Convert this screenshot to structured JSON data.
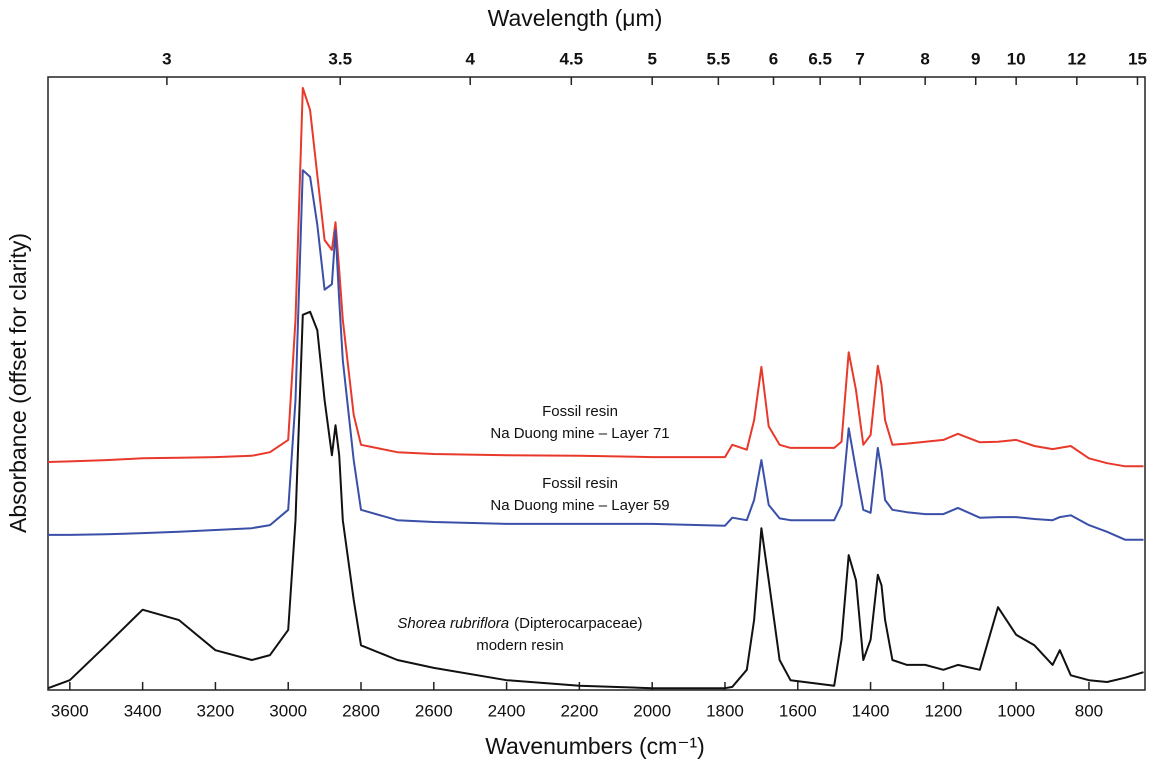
{
  "chart_data": {
    "type": "line",
    "title_top": "Wavelength (μm)",
    "xlabel": "Wavenumbers (cm⁻¹)",
    "ylabel": "Absorbance (offset for clarity)",
    "xlim": [
      3660,
      646
    ],
    "xticks": [
      3600,
      3400,
      3200,
      3000,
      2800,
      2600,
      2400,
      2200,
      2000,
      1800,
      1600,
      1400,
      1200,
      1000,
      800
    ],
    "x2ticks": [
      3,
      3.5,
      4,
      4.5,
      5,
      5.5,
      6,
      6.5,
      7,
      8,
      9,
      10,
      12,
      15
    ],
    "ylim": [
      0,
      100
    ],
    "x": [
      3660,
      3600,
      3500,
      3400,
      3300,
      3200,
      3100,
      3050,
      3000,
      2980,
      2960,
      2940,
      2920,
      2900,
      2880,
      2870,
      2860,
      2850,
      2820,
      2800,
      2700,
      2600,
      2400,
      2200,
      2000,
      1800,
      1780,
      1740,
      1720,
      1700,
      1680,
      1650,
      1620,
      1500,
      1480,
      1460,
      1440,
      1420,
      1400,
      1380,
      1370,
      1360,
      1340,
      1300,
      1250,
      1200,
      1160,
      1100,
      1050,
      1000,
      950,
      900,
      880,
      850,
      800,
      750,
      700,
      650
    ],
    "series": [
      {
        "color": "#e8392b",
        "values": [
          37.2,
          37.3,
          37.5,
          37.8,
          37.9,
          38,
          38.2,
          38.8,
          40.8,
          60.4,
          98.2,
          94.6,
          84,
          73.4,
          71.8,
          76.3,
          68.5,
          60.4,
          44.9,
          40,
          38.8,
          38.5,
          38.3,
          38.2,
          38,
          38,
          40,
          39.2,
          44,
          52.7,
          43,
          40,
          39.5,
          39.5,
          40.5,
          55.1,
          48.9,
          40,
          41.6,
          52.9,
          49.8,
          44,
          40,
          40.2,
          40.5,
          40.8,
          41.8,
          40.4,
          40.5,
          40.8,
          39.8,
          39.3,
          39.5,
          39.8,
          37.8,
          37,
          36.5,
          36.5
        ]
      },
      {
        "color": "#3a4fa8",
        "values": [
          25.3,
          25.3,
          25.4,
          25.6,
          25.8,
          26.1,
          26.4,
          26.9,
          29.4,
          47.3,
          84.8,
          83.7,
          75.9,
          65.3,
          66.2,
          75,
          63.6,
          53.8,
          37.5,
          29.4,
          27.7,
          27.4,
          27.1,
          27.1,
          27.1,
          26.8,
          28.1,
          27.7,
          31,
          37.5,
          30.2,
          28,
          27.7,
          27.7,
          30.2,
          42.7,
          35.9,
          29.4,
          28.9,
          39.5,
          35.9,
          31,
          29.4,
          29,
          28.7,
          28.7,
          29.7,
          28.1,
          28.2,
          28.2,
          27.9,
          27.7,
          28.2,
          28.5,
          26.9,
          25.8,
          24.5,
          24.5
        ]
      },
      {
        "color": "#111111",
        "values": [
          0.3,
          1.6,
          7.3,
          13.1,
          11.4,
          6.5,
          4.9,
          5.7,
          9.8,
          27.7,
          61.2,
          61.7,
          58.7,
          47.3,
          38.3,
          43.2,
          38.3,
          27.7,
          14.7,
          7.3,
          4.9,
          3.6,
          1.6,
          0.7,
          0.3,
          0.3,
          0.5,
          3.3,
          11.4,
          26.4,
          17.9,
          4.9,
          1.6,
          0.7,
          8.2,
          22,
          17.9,
          4.9,
          8.2,
          18.8,
          17.1,
          11.4,
          4.9,
          4.1,
          4.1,
          3.3,
          4.1,
          3.3,
          13.5,
          9,
          7.3,
          4.1,
          6.5,
          2.4,
          1.6,
          1.3,
          2,
          2.9
        ]
      }
    ],
    "annotations": [
      [
        "Fossil resin",
        "Na Duong mine – Layer 71"
      ],
      [
        "Fossil resin",
        "Na Duong mine – Layer 59"
      ],
      [
        "Shorea rubriflora",
        "(Dipterocarpaceae)",
        "modern resin"
      ]
    ]
  }
}
